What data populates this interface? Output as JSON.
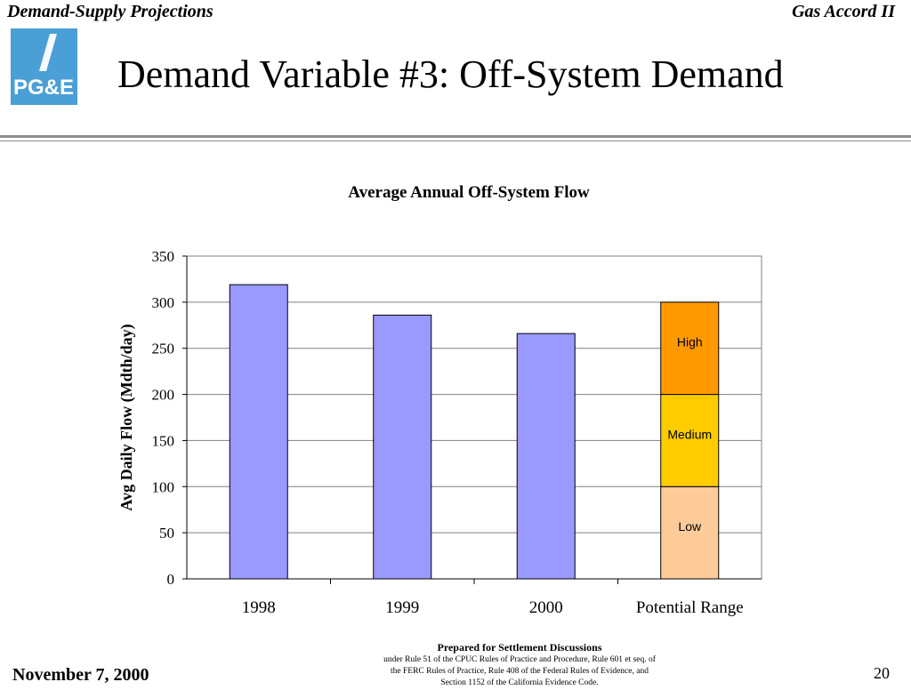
{
  "header": {
    "left": "Demand-Supply Projections",
    "right": "Gas Accord II"
  },
  "logo": {
    "text": "PG&E",
    "color": "#4a9fd6",
    "accent": "#ffffff"
  },
  "slide_title": "Demand Variable #3:  Off-System Demand",
  "footer": {
    "date": "November 7, 2000",
    "page": "20",
    "note_lead": "Prepared for Settlement Discussions",
    "note_lines": [
      "under Rule 51 of the CPUC Rules of Practice and Procedure, Rule 601 et seq. of",
      "the FERC Rules of Practice, Rule 408 of the Federal Rules of Evidence, and",
      "Section 1152 of the California Evidence Code."
    ]
  },
  "chart_data": {
    "type": "bar",
    "title": "Average Annual Off-System Flow",
    "ylabel": "Avg Daily Flow (Mdth/day)",
    "xlabel": "",
    "ylim": [
      0,
      350
    ],
    "yticks": [
      0,
      50,
      100,
      150,
      200,
      250,
      300,
      350
    ],
    "grid": true,
    "categories": [
      "1998",
      "1999",
      "2000",
      "Potential Range"
    ],
    "values": [
      319,
      286,
      266,
      null
    ],
    "bar_color": "#9999ff",
    "stacked_range": {
      "category": "Potential Range",
      "segments": [
        {
          "name": "Low",
          "from": 0,
          "to": 100,
          "color": "#ffcc99"
        },
        {
          "name": "Medium",
          "from": 100,
          "to": 200,
          "color": "#ffcc00"
        },
        {
          "name": "High",
          "from": 200,
          "to": 300,
          "color": "#ff9900"
        }
      ]
    }
  }
}
